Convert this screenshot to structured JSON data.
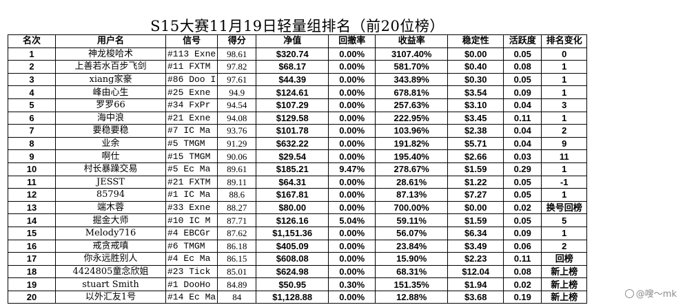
{
  "title": "S15大赛11月19日轻量组排名（前20位榜）",
  "headers": [
    "名次",
    "用户名",
    "信号",
    "得分",
    "净值",
    "回撤率",
    "收益率",
    "稳定性",
    "活跃度",
    "排名变化"
  ],
  "rows": [
    [
      "1",
      "神龙梭哈术",
      "#113 Exne",
      "98.61",
      "$320.74",
      "0.00%",
      "3107.40%",
      "$0.00",
      "0.05",
      "0"
    ],
    [
      "2",
      "上善若水百步飞剑",
      "#11 FXTM",
      "97.82",
      "$68.17",
      "0.00%",
      "581.70%",
      "$0.40",
      "0.08",
      "1"
    ],
    [
      "3",
      "xiang家豪",
      "#86 Doo I",
      "97.61",
      "$44.39",
      "0.00%",
      "343.89%",
      "$0.30",
      "0.05",
      "1"
    ],
    [
      "4",
      "峰由心生",
      "#25 Exne",
      "94.9",
      "$124.61",
      "0.00%",
      "678.81%",
      "$3.54",
      "0.09",
      "1"
    ],
    [
      "5",
      "罗罗66",
      "#34 FxPr",
      "94.54",
      "$107.29",
      "0.00%",
      "257.63%",
      "$3.10",
      "0.04",
      "3"
    ],
    [
      "6",
      "海中浪",
      "#21 Exne",
      "94.08",
      "$129.58",
      "0.00%",
      "222.95%",
      "$3.45",
      "0.11",
      "1"
    ],
    [
      "7",
      "要稳要稳",
      "#7 IC Ma",
      "93.76",
      "$101.78",
      "0.00%",
      "103.96%",
      "$2.38",
      "0.04",
      "2"
    ],
    [
      "8",
      "业余",
      "#5 TMGM",
      "91.29",
      "$632.22",
      "0.00%",
      "191.82%",
      "$5.71",
      "0.04",
      "9"
    ],
    [
      "9",
      "啊仕",
      "#15 TMGM",
      "90.06",
      "$29.54",
      "0.00%",
      "195.40%",
      "$2.66",
      "0.03",
      "11"
    ],
    [
      "10",
      "村长暴躁交易",
      "#5 Ec Ma",
      "89.61",
      "$185.21",
      "9.47%",
      "278.67%",
      "$1.59",
      "0.29",
      "1"
    ],
    [
      "11",
      "JESST",
      "#21 FXTM",
      "89.11",
      "$64.31",
      "0.00%",
      "28.61%",
      "$1.22",
      "0.05",
      "-1"
    ],
    [
      "12",
      "85794",
      "#1 IC Ma",
      "88.6",
      "$167.81",
      "0.00%",
      "87.13%",
      "$7.27",
      "0.05",
      "1"
    ],
    [
      "13",
      "端木蓉",
      "#33 Exne",
      "88.27",
      "$80.00",
      "0.00%",
      "700.00%",
      "$0.00",
      "0.02",
      "换号回榜"
    ],
    [
      "14",
      "掘金大师",
      "#10 IC M",
      "87.71",
      "$126.16",
      "5.04%",
      "59.11%",
      "$1.59",
      "0.05",
      "5"
    ],
    [
      "15",
      "Melody716",
      "#4 EBCGr",
      "87.62",
      "$1,151.36",
      "0.00%",
      "56.07%",
      "$6.34",
      "0.09",
      "1"
    ],
    [
      "16",
      "戒贪戒嗔",
      "#6 TMGM",
      "86.18",
      "$405.09",
      "0.00%",
      "23.84%",
      "$3.49",
      "0.06",
      "2"
    ],
    [
      "17",
      "你永远胜别人",
      "#4 Ec Ma",
      "86.15",
      "$608.08",
      "0.00%",
      "15.90%",
      "$2.23",
      "0.11",
      "回榜"
    ],
    [
      "18",
      "4424805童念欣姐",
      "#23 Tick",
      "85.01",
      "$624.98",
      "0.00%",
      "68.31%",
      "$12.04",
      "0.08",
      "新上榜"
    ],
    [
      "19",
      "stuart Smith",
      "#1 DooHo",
      "84.89",
      "$50.95",
      "0.30%",
      "151.35%",
      "$1.94",
      "0.02",
      "新上榜"
    ],
    [
      "20",
      "以外汇友1号",
      "#14 Ec Ma",
      "84",
      "$1,128.88",
      "0.00%",
      "12.88%",
      "$3.68",
      "0.19",
      "新上榜"
    ]
  ],
  "watermark": "@嗖～mk"
}
